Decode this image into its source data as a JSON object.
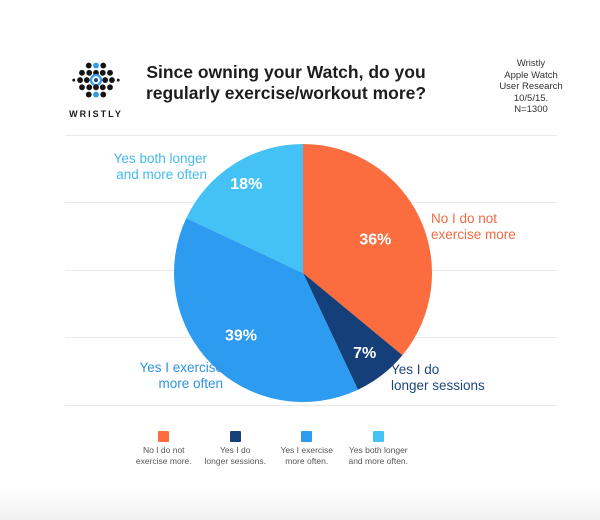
{
  "header": {
    "logo_brand": "WRISTLY",
    "title_line1": "Since owning your Watch, do you",
    "title_line2": "regularly exercise/workout more?",
    "source_lines": [
      "Wristly",
      "Apple Watch",
      "User Research",
      "10/5/15.",
      "N=1300"
    ]
  },
  "chart_data": {
    "type": "pie",
    "title": "Since owning your Watch, do you regularly exercise/workout more?",
    "start_angle": "12-oclock, clockwise",
    "units": "percent of respondents",
    "sample_note": "N=1300",
    "gridlines": true,
    "legend_position": "bottom",
    "slices": [
      {
        "label": "No I do not exercise more",
        "value": 36,
        "pct_label": "36%",
        "color": "#FB6D3E"
      },
      {
        "label": "Yes I do longer sessions",
        "value": 7,
        "pct_label": "7%",
        "color": "#143F78"
      },
      {
        "label": "Yes I exercise more often",
        "value": 39,
        "pct_label": "39%",
        "color": "#2D9BEF"
      },
      {
        "label": "Yes both longer and more often",
        "value": 18,
        "pct_label": "18%",
        "color": "#45C2F5"
      }
    ]
  },
  "callouts": {
    "longer_and_more_often": {
      "line1": "Yes both longer",
      "line2": "and more often",
      "color": "#45BBEE"
    },
    "no_exercise": {
      "line1": "No I do not",
      "line2": "exercise more",
      "color": "#EE6B44"
    },
    "longer_sessions": {
      "line1": "Yes I do",
      "line2": "longer sessions",
      "color": "#1D4679"
    },
    "more_often": {
      "line1": "Yes I exercise",
      "line2": "more often",
      "color": "#2E93DE"
    }
  },
  "legend": {
    "items": [
      {
        "line1": "No I do not",
        "line2": "exercise more.",
        "color": "#FB6D3E"
      },
      {
        "line1": "Yes I do",
        "line2": "longer sessions.",
        "color": "#143F78"
      },
      {
        "line1": "Yes I exercise",
        "line2": "more often.",
        "color": "#2D9BEF"
      },
      {
        "line1": "Yes both longer",
        "line2": "and more often.",
        "color": "#45C2F5"
      }
    ]
  }
}
